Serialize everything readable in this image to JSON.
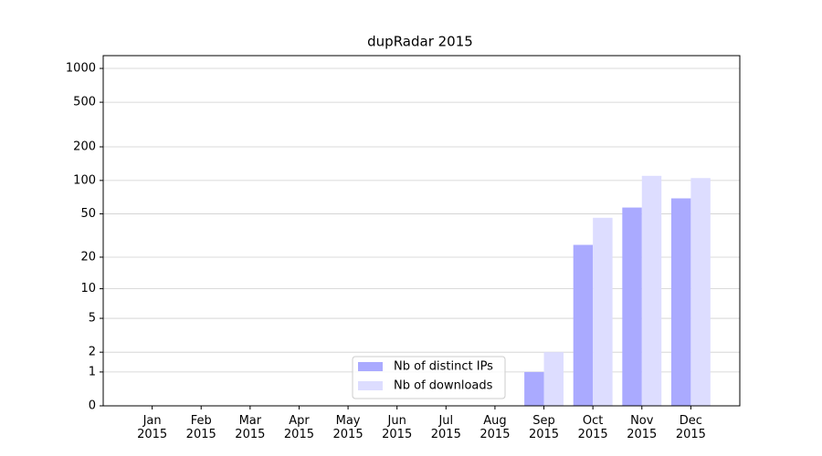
{
  "chart_data": {
    "type": "bar",
    "title": "dupRadar 2015",
    "categories": [
      "Jan 2015",
      "Feb 2015",
      "Mar 2015",
      "Apr 2015",
      "May 2015",
      "Jun 2015",
      "Jul 2015",
      "Aug 2015",
      "Sep 2015",
      "Oct 2015",
      "Nov 2015",
      "Dec 2015"
    ],
    "series": [
      {
        "name": "Nb of distinct IPs",
        "color": "#aaaaff",
        "values": [
          0,
          0,
          0,
          0,
          0,
          0,
          0,
          0,
          1,
          26,
          57,
          69
        ]
      },
      {
        "name": "Nb of downloads",
        "color": "#ddddff",
        "values": [
          0,
          0,
          0,
          0,
          0,
          0,
          0,
          0,
          2,
          46,
          110,
          105
        ]
      }
    ],
    "yscale": "symlog",
    "ylim": [
      0,
      1300
    ],
    "yticks": [
      0,
      1,
      2,
      5,
      10,
      20,
      50,
      100,
      200,
      500,
      1000
    ],
    "grid": true,
    "legend": "lower center"
  }
}
